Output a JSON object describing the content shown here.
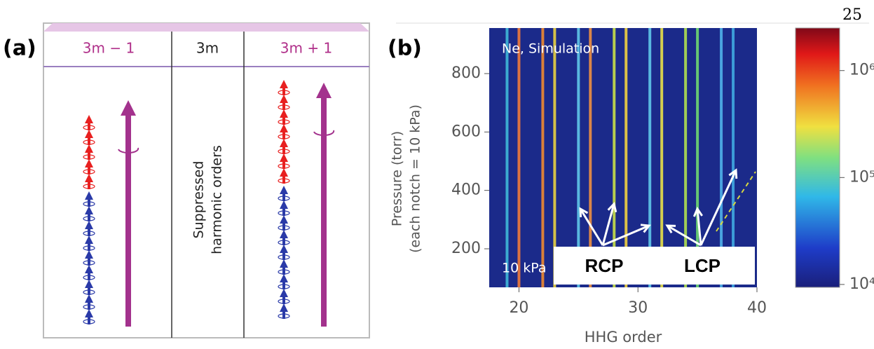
{
  "page_number": "25",
  "panel_a": {
    "label": "(a)",
    "columns": [
      "3m − 1",
      "3m",
      "3m + 1"
    ],
    "middle_text": [
      "Suppressed",
      "harmonic orders"
    ]
  },
  "chart_data": {
    "type": "spectrum",
    "panel_label": "(b)",
    "xlabel": "HHG order",
    "ylabel": [
      "Pressure (torr)",
      "(each notch = 10 kPa)"
    ],
    "xlim": [
      17.5,
      40
    ],
    "ylim": [
      68,
      956
    ],
    "xticks": [
      20,
      30,
      40
    ],
    "yticks": [
      200,
      400,
      600,
      800
    ],
    "background": "#1b2a8a",
    "harmonics": [
      {
        "order": 19,
        "color": "#3fb8d8"
      },
      {
        "order": 20,
        "color": "#f07a3a"
      },
      {
        "order": 22,
        "color": "#f08a30"
      },
      {
        "order": 23,
        "color": "#e8d040"
      },
      {
        "order": 25,
        "color": "#60c8e8"
      },
      {
        "order": 26,
        "color": "#f09040"
      },
      {
        "order": 28,
        "color": "#c8e048"
      },
      {
        "order": 29,
        "color": "#f0d040"
      },
      {
        "order": 31,
        "color": "#60c8e8"
      },
      {
        "order": 32,
        "color": "#e8e048"
      },
      {
        "order": 34,
        "color": "#b0e050"
      },
      {
        "order": 35,
        "color": "#70d870"
      },
      {
        "order": 37,
        "color": "#50b0e8"
      },
      {
        "order": 38,
        "color": "#40a8e0"
      }
    ],
    "annotations": [
      "Ne, Simulation",
      "10 kPa",
      "RCP",
      "LCP"
    ],
    "colorbar": {
      "scale": "log",
      "lim": [
        9400,
        2500000
      ],
      "ticks": [
        {
          "value": 10000,
          "label": "10⁴"
        },
        {
          "value": 100000,
          "label": "10⁵"
        },
        {
          "value": 1000000,
          "label": "10⁶"
        }
      ]
    }
  }
}
